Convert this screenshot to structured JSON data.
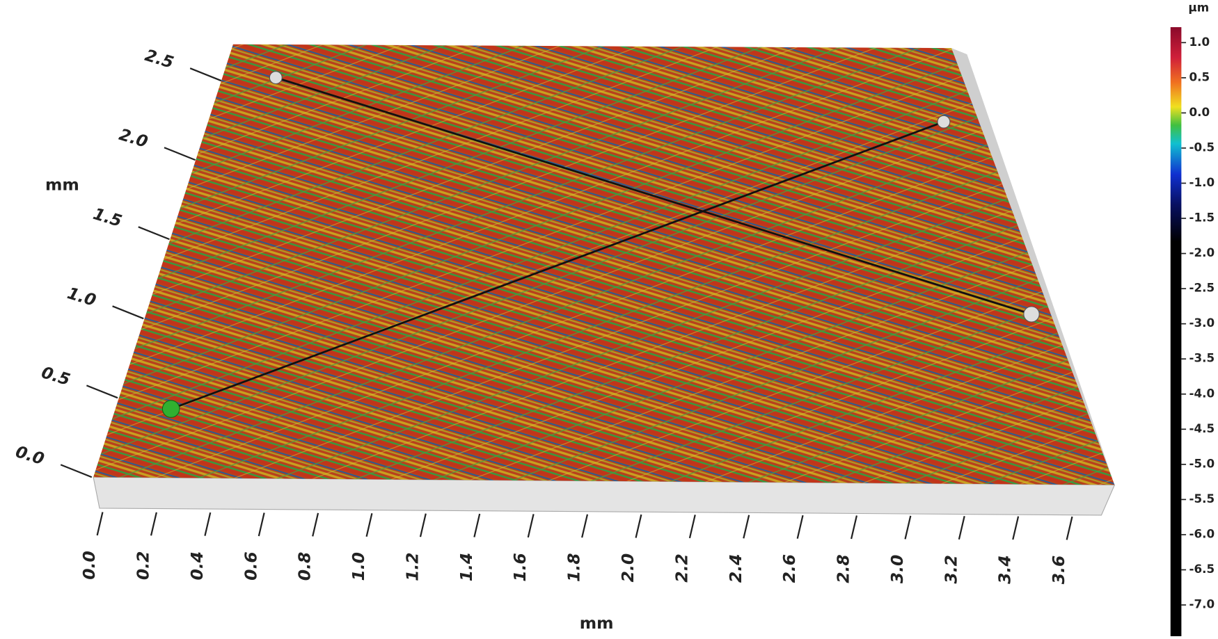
{
  "chart_data": {
    "type": "surface3d",
    "x_label": "mm",
    "y_label": "mm",
    "xlim": [
      0,
      3.72
    ],
    "xticks": [
      {
        "value": 0,
        "label": "0.0"
      },
      0.2,
      0.4,
      0.6,
      0.8,
      {
        "value": 1,
        "label": "1.0"
      },
      1.2,
      1.4,
      1.6,
      1.8,
      {
        "value": 2,
        "label": "2.0"
      },
      2.2,
      2.4,
      2.6,
      2.8,
      {
        "value": 3,
        "label": "3.0"
      },
      3.2,
      3.4,
      3.6
    ],
    "ylim": [
      0,
      2.73
    ],
    "yticks": [
      {
        "value": 0,
        "label": "0.0"
      },
      0.5,
      {
        "value": 1,
        "label": "1.0"
      },
      1.5,
      {
        "value": 2,
        "label": "2.0"
      },
      2.5
    ],
    "colorbar": {
      "label": "µm",
      "clim": [
        -7.5,
        1.22
      ],
      "ticks": [
        {
          "value": 1,
          "label": "1.0"
        },
        0.5,
        {
          "value": 0,
          "label": "0.0"
        },
        -0.5,
        {
          "value": -1,
          "label": "-1.0"
        },
        -1.5,
        {
          "value": -2,
          "label": "-2.0"
        },
        -2.5,
        {
          "value": -3,
          "label": "-3.0"
        },
        -3.5,
        {
          "value": -4,
          "label": "-4.0"
        },
        -4.5,
        {
          "value": -5,
          "label": "-5.0"
        },
        -5.5,
        {
          "value": -6,
          "label": "-6.0"
        },
        -6.5,
        {
          "value": -7,
          "label": "-7.0"
        }
      ]
    }
  }
}
